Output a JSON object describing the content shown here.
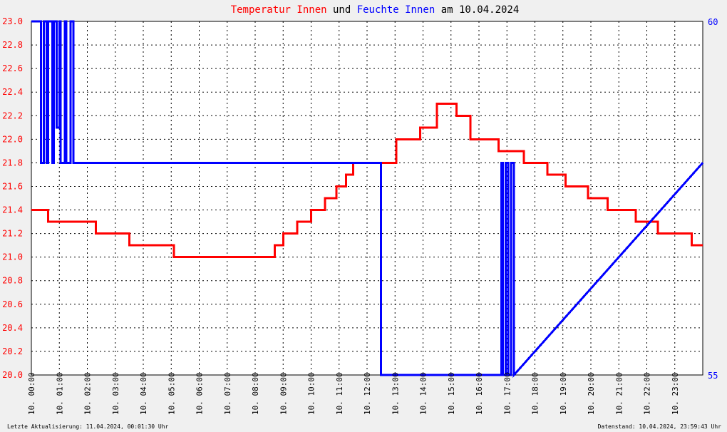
{
  "chart_data": {
    "type": "line",
    "title": {
      "segments": [
        {
          "text": "Temperatur Innen",
          "color": "#ff0000"
        },
        {
          "text": " und ",
          "color": "#000000"
        },
        {
          "text": "Feuchte Innen",
          "color": "#0000ff"
        },
        {
          "text": " am 10.04.2024",
          "color": "#000000"
        }
      ]
    },
    "y_left": {
      "ticks": [
        "20.0",
        "20.2",
        "20.4",
        "20.6",
        "20.8",
        "21.0",
        "21.2",
        "21.4",
        "21.6",
        "21.8",
        "22.0",
        "22.2",
        "22.4",
        "22.6",
        "22.8",
        "23.0"
      ],
      "range": [
        20.0,
        23.0
      ],
      "color": "#ff0000"
    },
    "y_right": {
      "ticks": [
        "55",
        "60"
      ],
      "range": [
        55,
        60
      ],
      "color": "#0000ff"
    },
    "x_axis": {
      "range_hours": [
        0,
        24
      ],
      "ticks": [
        "10. 00:00",
        "10. 01:00",
        "10. 02:00",
        "10. 03:00",
        "10. 04:00",
        "10. 05:00",
        "10. 06:00",
        "10. 07:00",
        "10. 08:00",
        "10. 09:00",
        "10. 10:00",
        "10. 11:00",
        "10. 12:00",
        "10. 13:00",
        "10. 14:00",
        "10. 15:00",
        "10. 16:00",
        "10. 17:00",
        "10. 18:00",
        "10. 19:00",
        "10. 20:00",
        "10. 21:00",
        "10. 22:00",
        "10. 23:00"
      ]
    },
    "grid": true,
    "series": [
      {
        "name": "Temperatur Innen",
        "color": "#ff0000",
        "axis": "left",
        "x": [
          0.0,
          0.6,
          0.6,
          1.6,
          1.6,
          2.3,
          2.3,
          3.5,
          3.5,
          4.5,
          4.5,
          5.1,
          5.1,
          6.0,
          6.0,
          8.7,
          8.7,
          9.0,
          9.0,
          9.5,
          9.5,
          10.0,
          10.0,
          10.5,
          10.5,
          10.9,
          10.9,
          11.25,
          11.25,
          11.5,
          11.5,
          13.05,
          13.05,
          13.9,
          13.9,
          14.5,
          14.5,
          15.2,
          15.2,
          15.7,
          15.7,
          16.7,
          16.7,
          17.6,
          17.6,
          18.45,
          18.45,
          19.1,
          19.1,
          19.9,
          19.9,
          20.6,
          20.6,
          21.6,
          21.6,
          22.4,
          22.4,
          23.6,
          23.6,
          24.0
        ],
        "y": [
          21.4,
          21.4,
          21.3,
          21.3,
          21.3,
          21.3,
          21.2,
          21.2,
          21.1,
          21.1,
          21.1,
          21.1,
          21.0,
          21.0,
          21.0,
          21.0,
          21.1,
          21.1,
          21.2,
          21.2,
          21.3,
          21.3,
          21.4,
          21.4,
          21.5,
          21.5,
          21.6,
          21.6,
          21.7,
          21.7,
          21.8,
          21.8,
          22.0,
          22.0,
          22.1,
          22.1,
          22.3,
          22.3,
          22.2,
          22.2,
          22.0,
          22.0,
          21.9,
          21.9,
          21.8,
          21.8,
          21.7,
          21.7,
          21.6,
          21.6,
          21.5,
          21.5,
          21.4,
          21.4,
          21.3,
          21.3,
          21.2,
          21.2,
          21.1,
          21.1
        ]
      },
      {
        "name": "Feuchte Innen",
        "color": "#0000ff",
        "axis": "right",
        "x": [
          0.0,
          0.35,
          0.35,
          0.45,
          0.45,
          0.55,
          0.55,
          0.6,
          0.6,
          0.75,
          0.75,
          0.8,
          0.8,
          0.9,
          0.9,
          1.0,
          1.0,
          1.05,
          1.05,
          1.2,
          1.2,
          1.25,
          1.25,
          1.4,
          1.4,
          1.5,
          1.5,
          12.5,
          12.5,
          16.8,
          16.8,
          16.85,
          16.85,
          16.95,
          16.95,
          17.05,
          17.05,
          17.15,
          17.15,
          17.25,
          17.25,
          24.0
        ],
        "y": [
          60.0,
          60.0,
          58.0,
          58.0,
          60.0,
          60.0,
          58.0,
          58.0,
          60.0,
          60.0,
          58.0,
          58.0,
          60.0,
          60.0,
          58.5,
          58.5,
          60.0,
          60.0,
          58.0,
          58.0,
          60.0,
          60.0,
          58.0,
          58.0,
          60.0,
          60.0,
          58.0,
          58.0,
          55.0,
          55.0,
          58.0,
          58.0,
          55.0,
          55.0,
          58.0,
          58.0,
          55.0,
          55.0,
          58.0,
          58.0,
          55.0,
          58.0
        ]
      }
    ]
  },
  "footer": {
    "left": "Letzte Aktualisierung: 11.04.2024, 00:01:30 Uhr",
    "right": "Datenstand: 10.04.2024, 23:59:43 Uhr"
  }
}
